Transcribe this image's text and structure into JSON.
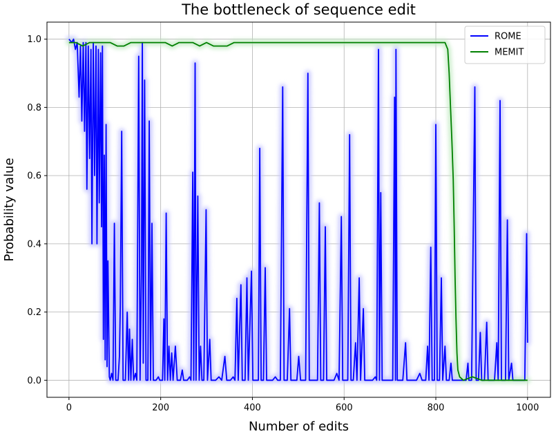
{
  "chart_data": {
    "type": "line",
    "title": "The bottleneck of sequence edit",
    "xlabel": "Number of edits",
    "ylabel": "Probability value",
    "xlim": [
      -48,
      1050
    ],
    "ylim": [
      -0.05,
      1.05
    ],
    "xticks": [
      0,
      200,
      400,
      600,
      800,
      1000
    ],
    "yticks": [
      0.0,
      0.2,
      0.4,
      0.6,
      0.8,
      1.0
    ],
    "grid": true,
    "legend_position": "top-right",
    "series": [
      {
        "name": "ROME",
        "color": "#0000ff",
        "glow_color": "#c8c8ff",
        "points": [
          [
            0,
            1.0
          ],
          [
            6,
            0.99
          ],
          [
            10,
            1.0
          ],
          [
            14,
            0.97
          ],
          [
            18,
            0.99
          ],
          [
            22,
            0.83
          ],
          [
            25,
            0.98
          ],
          [
            28,
            0.76
          ],
          [
            31,
            0.99
          ],
          [
            34,
            0.73
          ],
          [
            37,
            0.99
          ],
          [
            39,
            0.56
          ],
          [
            42,
            0.98
          ],
          [
            45,
            0.65
          ],
          [
            48,
            0.97
          ],
          [
            50,
            0.4
          ],
          [
            53,
            0.99
          ],
          [
            56,
            0.6
          ],
          [
            59,
            0.98
          ],
          [
            61,
            0.4
          ],
          [
            64,
            0.97
          ],
          [
            66,
            0.52
          ],
          [
            69,
            0.96
          ],
          [
            71,
            0.45
          ],
          [
            73,
            0.98
          ],
          [
            75,
            0.12
          ],
          [
            77,
            0.66
          ],
          [
            79,
            0.06
          ],
          [
            81,
            0.75
          ],
          [
            83,
            0.04
          ],
          [
            85,
            0.35
          ],
          [
            88,
            0.01
          ],
          [
            90,
            0.0
          ],
          [
            93,
            0.02
          ],
          [
            96,
            0.0
          ],
          [
            99,
            0.46
          ],
          [
            102,
            0.0
          ],
          [
            107,
            0.0
          ],
          [
            110,
            0.07
          ],
          [
            112,
            0.22
          ],
          [
            115,
            0.73
          ],
          [
            118,
            0.0
          ],
          [
            123,
            0.0
          ],
          [
            127,
            0.2
          ],
          [
            130,
            0.0
          ],
          [
            132,
            0.15
          ],
          [
            135,
            0.0
          ],
          [
            138,
            0.12
          ],
          [
            141,
            0.0
          ],
          [
            145,
            0.02
          ],
          [
            148,
            0.0
          ],
          [
            152,
            0.95
          ],
          [
            155,
            0.0
          ],
          [
            158,
            0.32
          ],
          [
            160,
            0.99
          ],
          [
            162,
            0.05
          ],
          [
            165,
            0.88
          ],
          [
            168,
            0.0
          ],
          [
            172,
            0.0
          ],
          [
            175,
            0.76
          ],
          [
            178,
            0.0
          ],
          [
            181,
            0.46
          ],
          [
            184,
            0.0
          ],
          [
            190,
            0.0
          ],
          [
            195,
            0.01
          ],
          [
            198,
            0.0
          ],
          [
            204,
            0.0
          ],
          [
            207,
            0.18
          ],
          [
            209,
            0.0
          ],
          [
            212,
            0.49
          ],
          [
            215,
            0.0
          ],
          [
            218,
            0.1
          ],
          [
            221,
            0.0
          ],
          [
            224,
            0.08
          ],
          [
            227,
            0.0
          ],
          [
            232,
            0.1
          ],
          [
            236,
            0.0
          ],
          [
            243,
            0.0
          ],
          [
            247,
            0.03
          ],
          [
            250,
            0.0
          ],
          [
            258,
            0.0
          ],
          [
            263,
            0.01
          ],
          [
            266,
            0.0
          ],
          [
            270,
            0.61
          ],
          [
            272,
            0.0
          ],
          [
            275,
            0.93
          ],
          [
            277,
            0.0
          ],
          [
            281,
            0.54
          ],
          [
            284,
            0.0
          ],
          [
            287,
            0.1
          ],
          [
            290,
            0.0
          ],
          [
            294,
            0.0
          ],
          [
            299,
            0.5
          ],
          [
            302,
            0.0
          ],
          [
            307,
            0.12
          ],
          [
            310,
            0.0
          ],
          [
            320,
            0.0
          ],
          [
            327,
            0.01
          ],
          [
            333,
            0.0
          ],
          [
            340,
            0.07
          ],
          [
            344,
            0.0
          ],
          [
            352,
            0.0
          ],
          [
            358,
            0.01
          ],
          [
            362,
            0.0
          ],
          [
            366,
            0.24
          ],
          [
            369,
            0.0
          ],
          [
            375,
            0.28
          ],
          [
            378,
            0.0
          ],
          [
            384,
            0.0
          ],
          [
            388,
            0.3
          ],
          [
            391,
            0.0
          ],
          [
            398,
            0.32
          ],
          [
            401,
            0.0
          ],
          [
            407,
            0.0
          ],
          [
            413,
            0.0
          ],
          [
            416,
            0.68
          ],
          [
            419,
            0.0
          ],
          [
            424,
            0.0
          ],
          [
            428,
            0.33
          ],
          [
            431,
            0.0
          ],
          [
            438,
            0.0
          ],
          [
            444,
            0.0
          ],
          [
            450,
            0.01
          ],
          [
            455,
            0.0
          ],
          [
            461,
            0.0
          ],
          [
            466,
            0.86
          ],
          [
            469,
            0.0
          ],
          [
            476,
            0.0
          ],
          [
            481,
            0.21
          ],
          [
            484,
            0.0
          ],
          [
            491,
            0.0
          ],
          [
            497,
            0.0
          ],
          [
            501,
            0.07
          ],
          [
            505,
            0.0
          ],
          [
            511,
            0.0
          ],
          [
            516,
            0.0
          ],
          [
            521,
            0.9
          ],
          [
            524,
            0.0
          ],
          [
            531,
            0.0
          ],
          [
            537,
            0.0
          ],
          [
            542,
            0.0
          ],
          [
            546,
            0.52
          ],
          [
            549,
            0.0
          ],
          [
            555,
            0.0
          ],
          [
            559,
            0.45
          ],
          [
            562,
            0.0
          ],
          [
            570,
            0.0
          ],
          [
            578,
            0.0
          ],
          [
            584,
            0.02
          ],
          [
            589,
            0.0
          ],
          [
            594,
            0.48
          ],
          [
            597,
            0.0
          ],
          [
            603,
            0.0
          ],
          [
            608,
            0.0
          ],
          [
            612,
            0.72
          ],
          [
            615,
            0.0
          ],
          [
            620,
            0.0
          ],
          [
            625,
            0.11
          ],
          [
            628,
            0.0
          ],
          [
            633,
            0.3
          ],
          [
            636,
            0.0
          ],
          [
            642,
            0.21
          ],
          [
            645,
            0.0
          ],
          [
            650,
            0.0
          ],
          [
            656,
            0.0
          ],
          [
            662,
            0.0
          ],
          [
            668,
            0.01
          ],
          [
            671,
            0.0
          ],
          [
            675,
            0.97
          ],
          [
            677,
            0.0
          ],
          [
            680,
            0.55
          ],
          [
            683,
            0.0
          ],
          [
            690,
            0.0
          ],
          [
            695,
            0.0
          ],
          [
            700,
            0.0
          ],
          [
            706,
            0.0
          ],
          [
            710,
            0.83
          ],
          [
            712,
            0.0
          ],
          [
            713,
            0.97
          ],
          [
            716,
            0.0
          ],
          [
            722,
            0.0
          ],
          [
            728,
            0.0
          ],
          [
            734,
            0.11
          ],
          [
            737,
            0.0
          ],
          [
            745,
            0.0
          ],
          [
            752,
            0.0
          ],
          [
            758,
            0.0
          ],
          [
            765,
            0.02
          ],
          [
            770,
            0.0
          ],
          [
            778,
            0.0
          ],
          [
            782,
            0.1
          ],
          [
            785,
            0.0
          ],
          [
            789,
            0.39
          ],
          [
            792,
            0.0
          ],
          [
            797,
            0.0
          ],
          [
            800,
            0.75
          ],
          [
            803,
            0.0
          ],
          [
            808,
            0.0
          ],
          [
            812,
            0.3
          ],
          [
            815,
            0.0
          ],
          [
            820,
            0.1
          ],
          [
            823,
            0.0
          ],
          [
            829,
            0.0
          ],
          [
            833,
            0.05
          ],
          [
            836,
            0.0
          ],
          [
            842,
            0.0
          ],
          [
            848,
            0.0
          ],
          [
            853,
            0.0
          ],
          [
            858,
            0.0
          ],
          [
            862,
            0.0
          ],
          [
            866,
            0.0
          ],
          [
            870,
            0.05
          ],
          [
            872,
            0.0
          ],
          [
            878,
            0.0
          ],
          [
            885,
            0.86
          ],
          [
            888,
            0.0
          ],
          [
            893,
            0.0
          ],
          [
            897,
            0.14
          ],
          [
            900,
            0.0
          ],
          [
            906,
            0.0
          ],
          [
            911,
            0.17
          ],
          [
            914,
            0.0
          ],
          [
            920,
            0.0
          ],
          [
            924,
            0.0
          ],
          [
            928,
            0.0
          ],
          [
            933,
            0.11
          ],
          [
            936,
            0.0
          ],
          [
            940,
            0.82
          ],
          [
            943,
            0.0
          ],
          [
            947,
            0.0
          ],
          [
            952,
            0.0
          ],
          [
            956,
            0.47
          ],
          [
            959,
            0.0
          ],
          [
            965,
            0.05
          ],
          [
            968,
            0.0
          ],
          [
            975,
            0.0
          ],
          [
            980,
            0.0
          ],
          [
            985,
            0.0
          ],
          [
            990,
            0.0
          ],
          [
            994,
            0.0
          ],
          [
            998,
            0.43
          ],
          [
            1000,
            0.11
          ]
        ]
      },
      {
        "name": "MEMIT",
        "color": "#008000",
        "glow_color": "#c8ecc8",
        "points": [
          [
            0,
            0.99
          ],
          [
            15,
            0.99
          ],
          [
            30,
            0.98
          ],
          [
            45,
            0.99
          ],
          [
            60,
            0.99
          ],
          [
            75,
            0.99
          ],
          [
            90,
            0.99
          ],
          [
            105,
            0.98
          ],
          [
            120,
            0.98
          ],
          [
            135,
            0.99
          ],
          [
            150,
            0.99
          ],
          [
            165,
            0.99
          ],
          [
            180,
            0.99
          ],
          [
            195,
            0.99
          ],
          [
            210,
            0.99
          ],
          [
            225,
            0.98
          ],
          [
            240,
            0.99
          ],
          [
            255,
            0.99
          ],
          [
            270,
            0.99
          ],
          [
            285,
            0.98
          ],
          [
            300,
            0.99
          ],
          [
            315,
            0.98
          ],
          [
            330,
            0.98
          ],
          [
            345,
            0.98
          ],
          [
            360,
            0.99
          ],
          [
            375,
            0.99
          ],
          [
            390,
            0.99
          ],
          [
            405,
            0.99
          ],
          [
            420,
            0.99
          ],
          [
            435,
            0.99
          ],
          [
            450,
            0.99
          ],
          [
            465,
            0.99
          ],
          [
            480,
            0.99
          ],
          [
            495,
            0.99
          ],
          [
            510,
            0.99
          ],
          [
            525,
            0.99
          ],
          [
            540,
            0.99
          ],
          [
            555,
            0.99
          ],
          [
            570,
            0.99
          ],
          [
            585,
            0.99
          ],
          [
            600,
            0.99
          ],
          [
            615,
            0.99
          ],
          [
            630,
            0.99
          ],
          [
            645,
            0.99
          ],
          [
            660,
            0.99
          ],
          [
            675,
            0.99
          ],
          [
            690,
            0.99
          ],
          [
            705,
            0.99
          ],
          [
            720,
            0.99
          ],
          [
            735,
            0.99
          ],
          [
            750,
            0.99
          ],
          [
            765,
            0.99
          ],
          [
            780,
            0.99
          ],
          [
            795,
            0.99
          ],
          [
            810,
            0.99
          ],
          [
            820,
            0.99
          ],
          [
            826,
            0.97
          ],
          [
            829,
            0.9
          ],
          [
            832,
            0.8
          ],
          [
            835,
            0.7
          ],
          [
            838,
            0.59
          ],
          [
            840,
            0.45
          ],
          [
            842,
            0.3
          ],
          [
            844,
            0.18
          ],
          [
            846,
            0.08
          ],
          [
            848,
            0.03
          ],
          [
            852,
            0.01
          ],
          [
            860,
            0.0
          ],
          [
            880,
            0.01
          ],
          [
            900,
            0.0
          ],
          [
            920,
            0.0
          ],
          [
            940,
            0.0
          ],
          [
            960,
            0.0
          ],
          [
            980,
            0.0
          ],
          [
            1000,
            0.0
          ]
        ]
      }
    ]
  }
}
